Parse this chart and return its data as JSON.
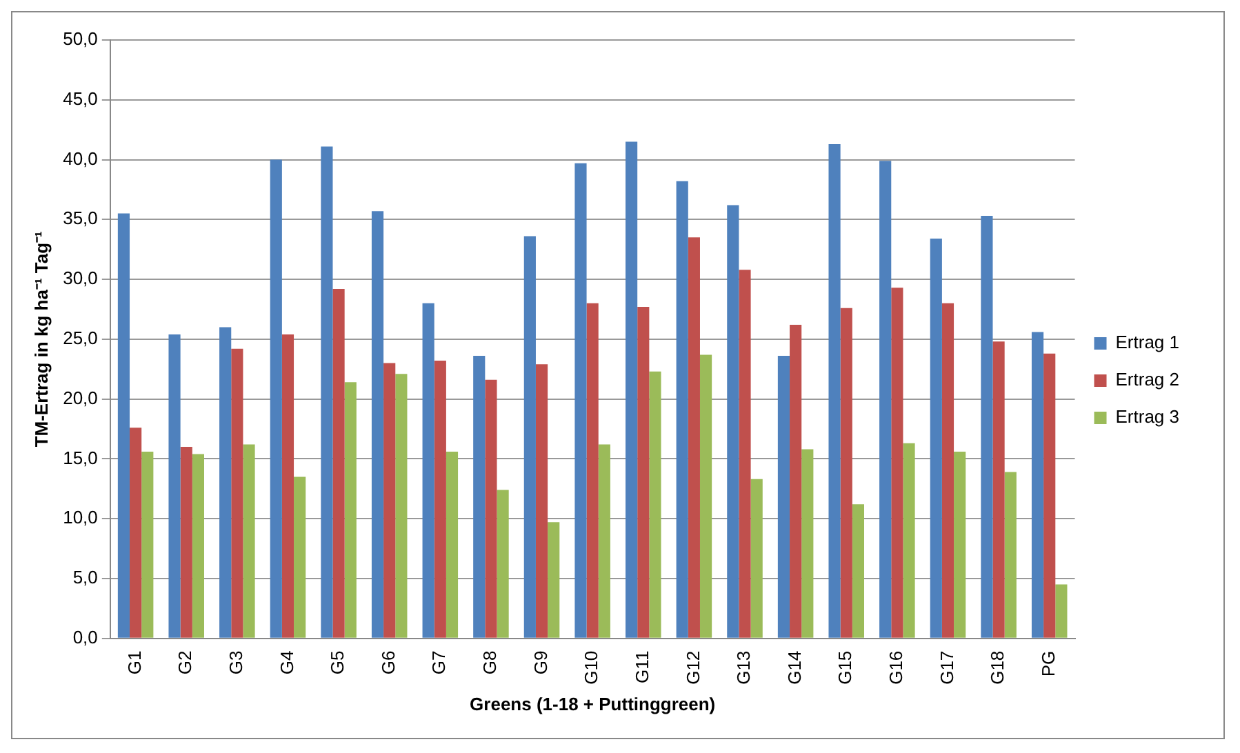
{
  "chart_data": {
    "type": "bar",
    "xlabel": "Greens (1-18 + Puttinggreen)",
    "ylabel": "TM-Ertrag in kg ha⁻¹ Tag⁻¹",
    "categories": [
      "G1",
      "G2",
      "G3",
      "G4",
      "G5",
      "G6",
      "G7",
      "G8",
      "G9",
      "G10",
      "G11",
      "G12",
      "G13",
      "G14",
      "G15",
      "G16",
      "G17",
      "G18",
      "PG"
    ],
    "series": [
      {
        "name": "Ertrag 1",
        "color": "#4f81bd",
        "values": [
          35.5,
          25.4,
          26.0,
          40.0,
          41.1,
          35.7,
          28.0,
          23.6,
          33.6,
          39.7,
          41.5,
          38.2,
          36.2,
          23.6,
          41.3,
          39.9,
          33.4,
          35.3,
          25.6
        ]
      },
      {
        "name": "Ertrag 2",
        "color": "#c0504d",
        "values": [
          17.6,
          16.0,
          24.2,
          25.4,
          29.2,
          23.0,
          23.2,
          21.6,
          22.9,
          28.0,
          27.7,
          33.5,
          30.8,
          26.2,
          27.6,
          29.3,
          28.0,
          24.8,
          23.8
        ]
      },
      {
        "name": "Ertrag 3",
        "color": "#9bbb59",
        "values": [
          15.6,
          15.4,
          16.2,
          13.5,
          21.4,
          22.1,
          15.6,
          12.4,
          9.7,
          16.2,
          22.3,
          23.7,
          13.3,
          15.8,
          11.2,
          16.3,
          15.6,
          13.9,
          4.5
        ]
      }
    ],
    "ylim": [
      0,
      50
    ],
    "yticks": [
      {
        "value": 0,
        "label": "0,0"
      },
      {
        "value": 5,
        "label": "5,0"
      },
      {
        "value": 10,
        "label": "10,0"
      },
      {
        "value": 15,
        "label": "15,0"
      },
      {
        "value": 20,
        "label": "20,0"
      },
      {
        "value": 25,
        "label": "25,0"
      },
      {
        "value": 30,
        "label": "30,0"
      },
      {
        "value": 35,
        "label": "35,0"
      },
      {
        "value": 40,
        "label": "40,0"
      },
      {
        "value": 45,
        "label": "45,0"
      },
      {
        "value": 50,
        "label": "50,0"
      }
    ],
    "grid": "y",
    "legend": "right"
  }
}
